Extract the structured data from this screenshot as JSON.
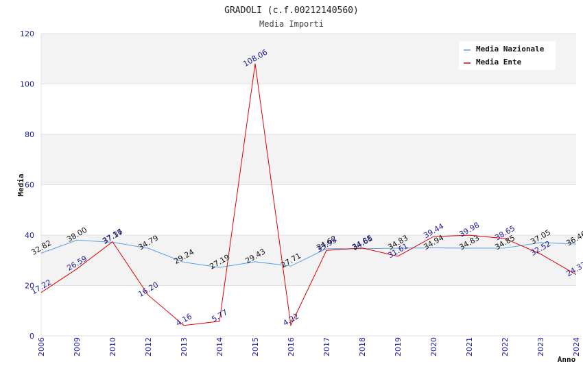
{
  "chart_data": {
    "type": "line",
    "title": "GRADOLI (c.f.00212140560)",
    "subtitle": "Media Importi",
    "xlabel": "Anno",
    "ylabel": "Media",
    "ylim": [
      0,
      120
    ],
    "yticks": [
      0,
      20,
      40,
      60,
      80,
      100,
      120
    ],
    "categories": [
      "2006",
      "2009",
      "2010",
      "2012",
      "2013",
      "2014",
      "2015",
      "2016",
      "2017",
      "2018",
      "2019",
      "2020",
      "2021",
      "2022",
      "2023",
      "2024"
    ],
    "series": [
      {
        "name": "Media Nazionale",
        "color": "#5aa0e6",
        "values": [
          32.82,
          38.0,
          37.17,
          34.79,
          29.24,
          27.19,
          29.43,
          27.71,
          34.62,
          34.61,
          34.83,
          34.94,
          34.83,
          34.85,
          37.05,
          36.46
        ],
        "labels": [
          "32.82",
          "38.00",
          "37.17",
          "34.79",
          "29.24",
          "27.19",
          "29.43",
          "27.71",
          "34.62",
          "34.61",
          "34.83",
          "34.94",
          "34.83",
          "34.85",
          "37.05",
          "36.46"
        ]
      },
      {
        "name": "Media Ente",
        "color": "#dd0000",
        "values": [
          17.22,
          26.59,
          37.36,
          16.2,
          4.16,
          5.77,
          108.06,
          4.22,
          33.95,
          34.88,
          31.61,
          39.44,
          39.98,
          38.65,
          32.52,
          24.33
        ],
        "labels": [
          "17.22",
          "26.59",
          "37.36",
          "16.20",
          "4.16",
          "5.77",
          "108.06",
          "4.22",
          "33.95",
          "34.88",
          "31.61",
          "39.44",
          "39.98",
          "38.65",
          "32.52",
          "24.33"
        ]
      }
    ],
    "grid": true,
    "legend_position": "top-right"
  }
}
